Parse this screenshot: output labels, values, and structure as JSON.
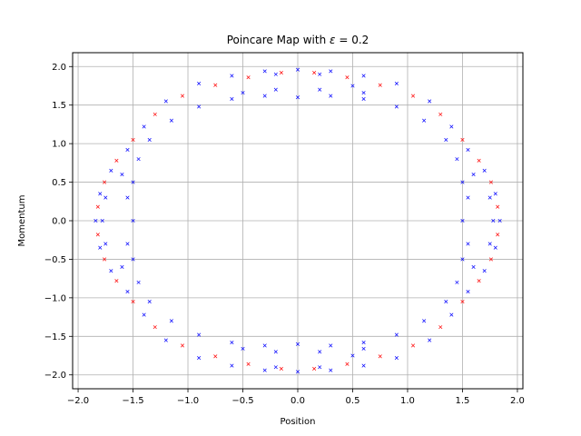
{
  "chart_data": {
    "type": "scatter",
    "title_prefix": "Poincare Map with ",
    "title_symbol": "ε",
    "title_suffix": " = 0.2",
    "xlabel": "Position",
    "ylabel": "Momentum",
    "xlim": [
      -2.05,
      2.05
    ],
    "ylim": [
      -2.18,
      2.18
    ],
    "xticks": [
      -2.0,
      -1.5,
      -1.0,
      -0.5,
      0.0,
      0.5,
      1.0,
      1.5,
      2.0
    ],
    "xtick_labels": [
      "−2.0",
      "−1.5",
      "−1.0",
      "−0.5",
      "0.0",
      "0.5",
      "1.0",
      "1.5",
      "2.0"
    ],
    "yticks": [
      -2.0,
      -1.5,
      -1.0,
      -0.5,
      0.0,
      0.5,
      1.0,
      1.5,
      2.0
    ],
    "ytick_labels": [
      "−2.0",
      "−1.5",
      "−1.0",
      "−0.5",
      "0.0",
      "0.5",
      "1.0",
      "1.5",
      "2.0"
    ],
    "grid": true,
    "marker": "x",
    "series": [
      {
        "color": "#0000ff",
        "points": [
          [
            0.0,
            1.96
          ],
          [
            0.3,
            1.94
          ],
          [
            0.6,
            1.88
          ],
          [
            0.9,
            1.78
          ],
          [
            1.2,
            1.55
          ],
          [
            1.4,
            1.22
          ],
          [
            1.55,
            0.92
          ],
          [
            1.7,
            0.65
          ],
          [
            1.8,
            0.35
          ],
          [
            1.84,
            0.0
          ],
          [
            1.8,
            -0.35
          ],
          [
            1.7,
            -0.65
          ],
          [
            1.55,
            -0.92
          ],
          [
            1.4,
            -1.22
          ],
          [
            1.2,
            -1.55
          ],
          [
            0.9,
            -1.78
          ],
          [
            0.6,
            -1.88
          ],
          [
            0.3,
            -1.94
          ],
          [
            0.0,
            -1.96
          ],
          [
            -0.3,
            -1.94
          ],
          [
            -0.6,
            -1.88
          ],
          [
            -0.9,
            -1.78
          ],
          [
            -1.2,
            -1.55
          ],
          [
            -1.4,
            -1.22
          ],
          [
            -1.55,
            -0.92
          ],
          [
            -1.7,
            -0.65
          ],
          [
            -1.8,
            -0.35
          ],
          [
            -1.84,
            0.0
          ],
          [
            -1.8,
            0.35
          ],
          [
            -1.7,
            0.65
          ],
          [
            -1.55,
            0.92
          ],
          [
            -1.4,
            1.22
          ],
          [
            -1.2,
            1.55
          ],
          [
            -0.9,
            1.78
          ],
          [
            -0.6,
            1.88
          ],
          [
            -0.3,
            1.94
          ],
          [
            0.0,
            1.6
          ],
          [
            0.3,
            1.62
          ],
          [
            0.6,
            1.58
          ],
          [
            0.9,
            1.48
          ],
          [
            1.15,
            1.3
          ],
          [
            1.35,
            1.05
          ],
          [
            1.45,
            0.8
          ],
          [
            1.45,
            -0.8
          ],
          [
            1.35,
            -1.05
          ],
          [
            1.15,
            -1.3
          ],
          [
            0.9,
            -1.48
          ],
          [
            0.6,
            -1.58
          ],
          [
            0.3,
            -1.62
          ],
          [
            0.0,
            -1.6
          ],
          [
            -0.3,
            -1.62
          ],
          [
            -0.6,
            -1.58
          ],
          [
            -0.9,
            -1.48
          ],
          [
            -1.15,
            -1.3
          ],
          [
            -1.35,
            -1.05
          ],
          [
            -1.45,
            -0.8
          ],
          [
            -1.45,
            0.8
          ],
          [
            -1.35,
            1.05
          ],
          [
            -1.15,
            1.3
          ],
          [
            -0.9,
            1.48
          ],
          [
            -0.6,
            1.58
          ],
          [
            -0.3,
            1.62
          ],
          [
            -0.5,
            1.66
          ],
          [
            -0.2,
            1.9
          ],
          [
            0.2,
            1.9
          ],
          [
            0.5,
            1.75
          ],
          [
            0.6,
            1.66
          ],
          [
            0.2,
            1.7
          ],
          [
            -0.2,
            1.7
          ],
          [
            -0.5,
            -1.66
          ],
          [
            -0.2,
            -1.9
          ],
          [
            0.2,
            -1.9
          ],
          [
            0.5,
            -1.75
          ],
          [
            0.6,
            -1.66
          ],
          [
            0.2,
            -1.7
          ],
          [
            -0.2,
            -1.7
          ],
          [
            1.5,
            0.5
          ],
          [
            1.6,
            0.6
          ],
          [
            1.75,
            0.3
          ],
          [
            1.78,
            0.0
          ],
          [
            1.75,
            -0.3
          ],
          [
            1.6,
            -0.6
          ],
          [
            1.5,
            -0.5
          ],
          [
            1.5,
            0.0
          ],
          [
            1.55,
            0.3
          ],
          [
            1.55,
            -0.3
          ],
          [
            -1.5,
            0.5
          ],
          [
            -1.6,
            0.6
          ],
          [
            -1.75,
            0.3
          ],
          [
            -1.78,
            0.0
          ],
          [
            -1.75,
            -0.3
          ],
          [
            -1.6,
            -0.6
          ],
          [
            -1.5,
            -0.5
          ],
          [
            -1.5,
            0.0
          ],
          [
            -1.55,
            0.3
          ],
          [
            -1.55,
            -0.3
          ]
        ]
      },
      {
        "color": "#ff0000",
        "points": [
          [
            0.15,
            1.92
          ],
          [
            0.45,
            1.86
          ],
          [
            0.75,
            1.76
          ],
          [
            1.05,
            1.62
          ],
          [
            1.3,
            1.38
          ],
          [
            1.5,
            1.05
          ],
          [
            1.65,
            0.78
          ],
          [
            1.76,
            0.5
          ],
          [
            1.82,
            0.18
          ],
          [
            1.82,
            -0.18
          ],
          [
            1.76,
            -0.5
          ],
          [
            1.65,
            -0.78
          ],
          [
            1.5,
            -1.05
          ],
          [
            1.3,
            -1.38
          ],
          [
            1.05,
            -1.62
          ],
          [
            0.75,
            -1.76
          ],
          [
            0.45,
            -1.86
          ],
          [
            0.15,
            -1.92
          ],
          [
            -0.15,
            -1.92
          ],
          [
            -0.45,
            -1.86
          ],
          [
            -0.75,
            -1.76
          ],
          [
            -1.05,
            -1.62
          ],
          [
            -1.3,
            -1.38
          ],
          [
            -1.5,
            -1.05
          ],
          [
            -1.65,
            -0.78
          ],
          [
            -1.76,
            -0.5
          ],
          [
            -1.82,
            -0.18
          ],
          [
            -1.82,
            0.18
          ],
          [
            -1.76,
            0.5
          ],
          [
            -1.65,
            0.78
          ],
          [
            -1.5,
            1.05
          ],
          [
            -1.3,
            1.38
          ],
          [
            -1.05,
            1.62
          ],
          [
            -0.75,
            1.76
          ],
          [
            -0.45,
            1.86
          ],
          [
            -0.15,
            1.92
          ]
        ]
      }
    ]
  }
}
